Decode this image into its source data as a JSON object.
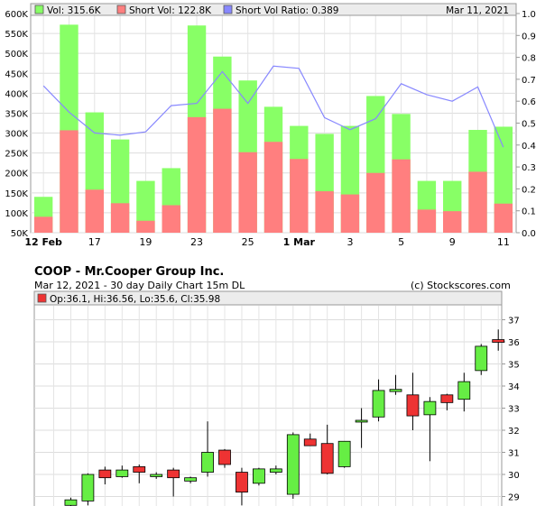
{
  "volume_panel": {
    "legend": [
      {
        "label": "Vol: 315.6K",
        "color": "#88ff66"
      },
      {
        "label": "Short Vol: 122.8K",
        "color": "#ff7f7f"
      },
      {
        "label": "Short Vol Ratio: 0.389",
        "color": "#8888ff"
      }
    ],
    "date": "Mar 11, 2021"
  },
  "price_panel": {
    "title": "COOP - Mr.Cooper Group Inc.",
    "subtitle": "Mar 12, 2021 - 30 day  Daily Chart 15m DL",
    "credit": "(c) Stockscores.com",
    "legend": "Op:36.1, Hi:36.56, Lo:35.6, Cl:35.98"
  },
  "chart_data": [
    {
      "type": "bar",
      "categories": [
        "12 Feb",
        "16 Feb",
        "17 Feb",
        "18 Feb",
        "19 Feb",
        "22 Feb",
        "23 Feb",
        "24 Feb",
        "25 Feb",
        "26 Feb",
        "1 Mar",
        "2 Mar",
        "3 Mar",
        "4 Mar",
        "5 Mar",
        "8 Mar",
        "9 Mar",
        "10 Mar",
        "11 Mar"
      ],
      "x_tick_labels": [
        "12 Feb",
        "17",
        "19",
        "23",
        "25",
        "1 Mar",
        "3",
        "5",
        "9",
        "11"
      ],
      "x_tick_indices": [
        0,
        2,
        4,
        6,
        8,
        10,
        12,
        14,
        16,
        18
      ],
      "series": [
        {
          "name": "Vol",
          "color": "#88ff66",
          "values": [
            140000,
            572000,
            352000,
            284000,
            180000,
            212000,
            570000,
            492000,
            432000,
            366000,
            318000,
            298000,
            318000,
            393000,
            348000,
            180000,
            180000,
            308000,
            316000
          ]
        },
        {
          "name": "Short Vol",
          "color": "#ff7f7f",
          "values": [
            90000,
            307000,
            158000,
            124000,
            80000,
            119000,
            340000,
            361000,
            252000,
            278000,
            235000,
            154000,
            146000,
            200000,
            234000,
            108000,
            104000,
            203000,
            123000
          ]
        },
        {
          "name": "Short Vol Ratio",
          "color": "#8888ff",
          "axis": "right",
          "values": [
            0.67,
            0.55,
            0.455,
            0.445,
            0.46,
            0.58,
            0.59,
            0.735,
            0.59,
            0.76,
            0.75,
            0.525,
            0.47,
            0.52,
            0.68,
            0.63,
            0.6,
            0.665,
            0.39
          ]
        }
      ],
      "ylim": [
        50000,
        600000
      ],
      "y_ticks": [
        "50K",
        "100K",
        "150K",
        "200K",
        "250K",
        "300K",
        "350K",
        "400K",
        "450K",
        "500K",
        "550K",
        "600K"
      ],
      "y2lim": [
        0,
        1.0
      ],
      "y2_ticks": [
        "0.0",
        "0.1",
        "0.2",
        "0.3",
        "0.4",
        "0.5",
        "0.6",
        "0.7",
        "0.8",
        "0.9",
        "1.0"
      ],
      "grid": true
    },
    {
      "type": "candlestick",
      "up_color": "#66ee44",
      "down_color": "#ee3333",
      "candles": [
        {
          "o": 28.3,
          "h": 28.45,
          "l": 28.1,
          "c": 28.2
        },
        {
          "o": 28.6,
          "h": 28.95,
          "l": 28.5,
          "c": 28.85
        },
        {
          "o": 28.8,
          "h": 30.05,
          "l": 28.6,
          "c": 30.0
        },
        {
          "o": 30.2,
          "h": 30.35,
          "l": 29.55,
          "c": 29.85
        },
        {
          "o": 29.9,
          "h": 30.4,
          "l": 29.85,
          "c": 30.2
        },
        {
          "o": 30.35,
          "h": 30.45,
          "l": 29.6,
          "c": 30.1
        },
        {
          "o": 29.9,
          "h": 30.1,
          "l": 29.8,
          "c": 30.0
        },
        {
          "o": 30.2,
          "h": 30.3,
          "l": 29.0,
          "c": 29.85
        },
        {
          "o": 29.7,
          "h": 29.9,
          "l": 29.6,
          "c": 29.85
        },
        {
          "o": 30.1,
          "h": 32.4,
          "l": 29.9,
          "c": 31.0
        },
        {
          "o": 31.1,
          "h": 31.15,
          "l": 30.3,
          "c": 30.45
        },
        {
          "o": 30.1,
          "h": 30.3,
          "l": 28.6,
          "c": 29.2
        },
        {
          "o": 29.6,
          "h": 30.3,
          "l": 29.5,
          "c": 30.25
        },
        {
          "o": 30.1,
          "h": 30.4,
          "l": 30.0,
          "c": 30.25
        },
        {
          "o": 29.1,
          "h": 31.9,
          "l": 28.9,
          "c": 31.8
        },
        {
          "o": 31.6,
          "h": 31.85,
          "l": 31.3,
          "c": 31.3
        },
        {
          "o": 31.4,
          "h": 32.25,
          "l": 30.0,
          "c": 30.05
        },
        {
          "o": 30.35,
          "h": 31.5,
          "l": 30.3,
          "c": 31.5
        },
        {
          "o": 32.4,
          "h": 33.0,
          "l": 31.2,
          "c": 32.45
        },
        {
          "o": 32.6,
          "h": 34.3,
          "l": 32.4,
          "c": 33.8
        },
        {
          "o": 33.75,
          "h": 34.5,
          "l": 33.6,
          "c": 33.85
        },
        {
          "o": 33.6,
          "h": 34.6,
          "l": 32.0,
          "c": 32.65
        },
        {
          "o": 32.7,
          "h": 33.5,
          "l": 30.6,
          "c": 33.3
        },
        {
          "o": 33.6,
          "h": 33.65,
          "l": 32.9,
          "c": 33.25
        },
        {
          "o": 33.4,
          "h": 34.6,
          "l": 32.85,
          "c": 34.2
        },
        {
          "o": 34.7,
          "h": 35.9,
          "l": 34.5,
          "c": 35.8
        },
        {
          "o": 36.1,
          "h": 36.56,
          "l": 35.6,
          "c": 35.98
        }
      ],
      "ylim": [
        28.5,
        37.5
      ],
      "y_ticks": [
        "29",
        "30",
        "31",
        "32",
        "33",
        "34",
        "35",
        "36",
        "37"
      ],
      "grid": true
    }
  ]
}
